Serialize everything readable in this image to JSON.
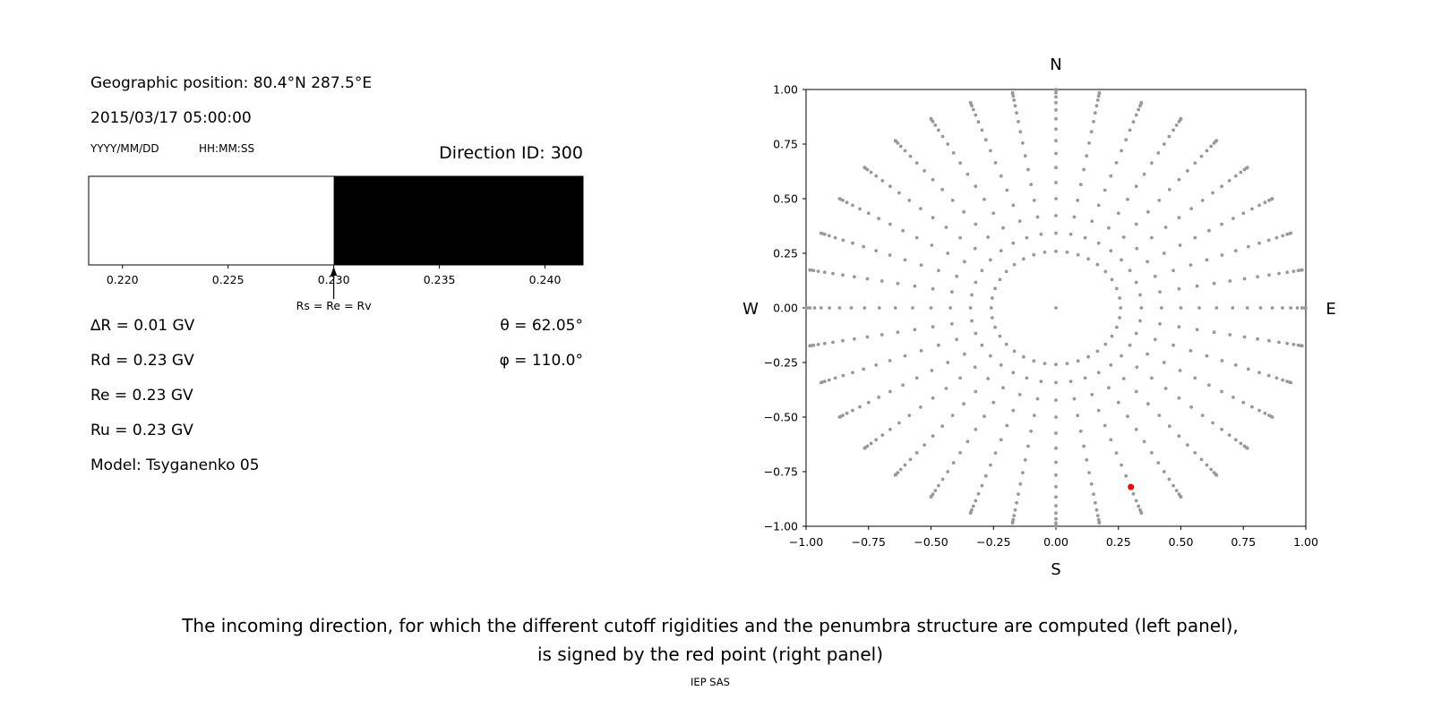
{
  "figure": {
    "background": "#ffffff",
    "text_color": "#000000"
  },
  "left_panel": {
    "geo_position": "Geographic position: 80.4°N 287.5°E",
    "datetime": "2015/03/17 05:00:00",
    "date_format_hint": "YYYY/MM/DD",
    "time_format_hint": "HH:MM:SS",
    "direction_id": "Direction ID: 300",
    "params": [
      "∆R = 0.01 GV",
      "Rd = 0.23 GV",
      "Re = 0.23 GV",
      "Ru = 0.23 GV",
      "Model: Tsyganenko 05"
    ],
    "theta": "θ = 62.05°",
    "phi": "φ = 110.0°"
  },
  "caption": {
    "line1": "The incoming direction, for which the different cutoff rigidities and the penumbra structure are computed (left panel),",
    "line2": "is signed by the red point (right panel)",
    "credit": "IEP SAS"
  },
  "chart_data": [
    {
      "type": "bar",
      "name": "penumbra-structure",
      "xlim": [
        0.2184,
        0.2418
      ],
      "x_ticks": [
        0.22,
        0.225,
        0.23,
        0.235,
        0.24
      ],
      "tick_decimals": 3,
      "regions": [
        {
          "from": 0.2184,
          "to": 0.23,
          "color": "#ffffff"
        },
        {
          "from": 0.23,
          "to": 0.2418,
          "color": "#000000"
        }
      ],
      "annotation": {
        "x": 0.23,
        "label": "Rs = Re = Rv"
      }
    },
    {
      "type": "scatter",
      "name": "incoming-direction-map",
      "xlim": [
        -1.0,
        1.0
      ],
      "ylim": [
        -1.0,
        1.0
      ],
      "x_ticks": [
        -1.0,
        -0.75,
        -0.5,
        -0.25,
        0.0,
        0.25,
        0.5,
        0.75,
        1.0
      ],
      "y_ticks": [
        -1.0,
        -0.75,
        -0.5,
        -0.25,
        0.0,
        0.25,
        0.5,
        0.75,
        1.0
      ],
      "tick_decimals": 2,
      "compass": {
        "top": "N",
        "bottom": "S",
        "left": "W",
        "right": "E"
      },
      "grid_dots": {
        "color": "#999999",
        "dot_radius_px": 1.9,
        "center_dot": true,
        "spokes": {
          "count": 36,
          "azimuth_step_deg": 10,
          "zenith_start_deg": 15,
          "zenith_end_deg": 90,
          "zenith_step_deg": 5,
          "radius_rule": "sin(zenith)"
        }
      },
      "highlight_point": {
        "x": 0.3,
        "y": -0.82,
        "color": "#ff0000",
        "radius_px": 3.5
      }
    }
  ]
}
